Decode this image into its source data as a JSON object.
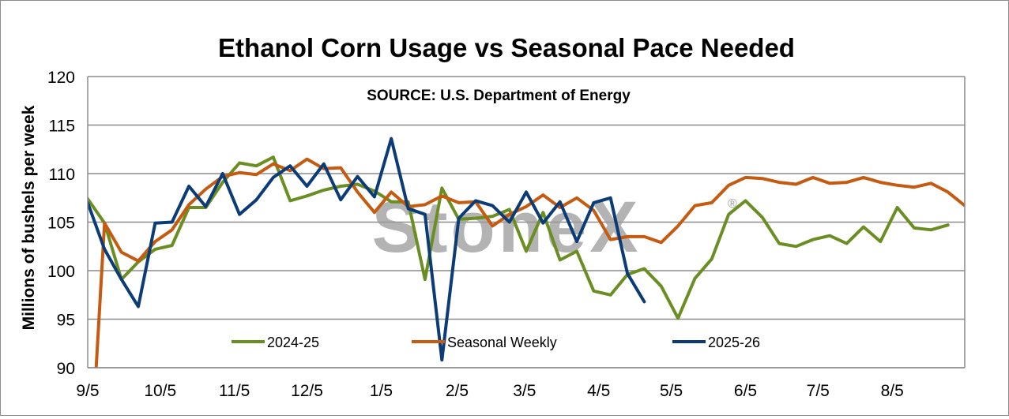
{
  "chart_data": {
    "type": "line",
    "title": "Ethanol Corn Usage vs Seasonal Pace Needed",
    "source_note": "SOURCE: U.S. Department of Energy",
    "watermark": "StoneX",
    "watermark_mark": "®",
    "ylabel": "Millions of bushels per week",
    "xlabel": "",
    "ylim": [
      90,
      120
    ],
    "yticks": [
      "90",
      "95",
      "100",
      "105",
      "110",
      "115",
      "120"
    ],
    "x_domain": [
      0,
      52
    ],
    "x_tick_labels": [
      "9/5",
      "10/5",
      "11/5",
      "12/5",
      "1/5",
      "2/5",
      "3/5",
      "4/5",
      "5/5",
      "6/5",
      "7/5",
      "8/5"
    ],
    "x_tick_positions": [
      0,
      4.3,
      8.7,
      13,
      17.4,
      21.9,
      25.9,
      30.3,
      34.6,
      39,
      43.3,
      47.7
    ],
    "grid": true,
    "legend_position": "bottom",
    "series": [
      {
        "name": "2024-25",
        "color": "#6b8e23",
        "points": [
          [
            0,
            107.4
          ],
          [
            1,
            104.9
          ],
          [
            2,
            99.1
          ],
          [
            3,
            100.9
          ],
          [
            4,
            102.2
          ],
          [
            5,
            102.6
          ],
          [
            6,
            106.5
          ],
          [
            7,
            106.5
          ],
          [
            8,
            109.1
          ],
          [
            9,
            111.1
          ],
          [
            10,
            110.8
          ],
          [
            11,
            111.7
          ],
          [
            12,
            107.2
          ],
          [
            13,
            107.7
          ],
          [
            14,
            108.3
          ],
          [
            15,
            108.7
          ],
          [
            16,
            108.9
          ],
          [
            17,
            108.2
          ],
          [
            18,
            107.1
          ],
          [
            19,
            107.1
          ],
          [
            20,
            99.1
          ],
          [
            21,
            108.5
          ],
          [
            22,
            105.3
          ],
          [
            23,
            105.4
          ],
          [
            24,
            105.6
          ],
          [
            25,
            106.3
          ],
          [
            26,
            102.0
          ],
          [
            27,
            106.0
          ],
          [
            28,
            101.1
          ],
          [
            29,
            102.0
          ],
          [
            30,
            97.9
          ],
          [
            31,
            97.5
          ],
          [
            32,
            99.6
          ],
          [
            33,
            100.2
          ],
          [
            34,
            98.4
          ],
          [
            35,
            95.1
          ],
          [
            36,
            99.2
          ],
          [
            37,
            101.2
          ],
          [
            38,
            105.8
          ],
          [
            39,
            107.2
          ],
          [
            40,
            105.5
          ],
          [
            41,
            102.8
          ],
          [
            42,
            102.5
          ],
          [
            43,
            103.2
          ],
          [
            44,
            103.6
          ],
          [
            45,
            102.8
          ],
          [
            46,
            104.5
          ],
          [
            47,
            103.0
          ],
          [
            48,
            106.5
          ],
          [
            49,
            104.4
          ],
          [
            50,
            104.2
          ],
          [
            51,
            104.7
          ]
        ]
      },
      {
        "name": "Seasonal Weekly",
        "color": "#c55a11",
        "points": [
          [
            0.5,
            90
          ],
          [
            1,
            104.9
          ],
          [
            2,
            101.9
          ],
          [
            3,
            101.0
          ],
          [
            4,
            103.0
          ],
          [
            5,
            104.2
          ],
          [
            6,
            106.8
          ],
          [
            7,
            108.4
          ],
          [
            8,
            109.7
          ],
          [
            9,
            110.1
          ],
          [
            10,
            109.9
          ],
          [
            11,
            111.0
          ],
          [
            12,
            110.3
          ],
          [
            13,
            111.5
          ],
          [
            14,
            110.5
          ],
          [
            15,
            110.6
          ],
          [
            16,
            108.1
          ],
          [
            17,
            106.0
          ],
          [
            18,
            108.1
          ],
          [
            19,
            106.6
          ],
          [
            20,
            106.8
          ],
          [
            21,
            107.7
          ],
          [
            22,
            107.0
          ],
          [
            23,
            107.1
          ],
          [
            24,
            104.6
          ],
          [
            25,
            105.8
          ],
          [
            26,
            106.6
          ],
          [
            27,
            107.8
          ],
          [
            28,
            106.5
          ],
          [
            29,
            107.5
          ],
          [
            30,
            106.2
          ],
          [
            31,
            103.2
          ],
          [
            32,
            103.5
          ],
          [
            33,
            103.5
          ],
          [
            34,
            102.9
          ],
          [
            35,
            104.6
          ],
          [
            36,
            106.7
          ],
          [
            37,
            107.0
          ],
          [
            38,
            108.8
          ],
          [
            39,
            109.6
          ],
          [
            40,
            109.5
          ],
          [
            41,
            109.1
          ],
          [
            42,
            108.9
          ],
          [
            43,
            109.6
          ],
          [
            44,
            109.0
          ],
          [
            45,
            109.1
          ],
          [
            46,
            109.6
          ],
          [
            47,
            109.1
          ],
          [
            48,
            108.8
          ],
          [
            49,
            108.6
          ],
          [
            50,
            109.0
          ],
          [
            51,
            108.1
          ],
          [
            52,
            106.7
          ]
        ]
      },
      {
        "name": "2025-26",
        "color": "#0c3c78",
        "points": [
          [
            0,
            107.0
          ],
          [
            1,
            102.2
          ],
          [
            2,
            99.1
          ],
          [
            3,
            96.3
          ],
          [
            4,
            104.9
          ],
          [
            5,
            105.0
          ],
          [
            6,
            108.7
          ],
          [
            7,
            106.6
          ],
          [
            8,
            110.0
          ],
          [
            9,
            105.8
          ],
          [
            10,
            107.3
          ],
          [
            11,
            109.6
          ],
          [
            12,
            110.8
          ],
          [
            13,
            108.7
          ],
          [
            14,
            111.0
          ],
          [
            15,
            107.3
          ],
          [
            16,
            109.7
          ],
          [
            17,
            107.6
          ],
          [
            18,
            113.6
          ],
          [
            19,
            106.4
          ],
          [
            20,
            105.8
          ],
          [
            21,
            90.8
          ],
          [
            22,
            105.4
          ],
          [
            23,
            107.2
          ],
          [
            24,
            106.7
          ],
          [
            25,
            105.0
          ],
          [
            26,
            108.1
          ],
          [
            27,
            104.9
          ],
          [
            28,
            107.1
          ],
          [
            29,
            103.0
          ],
          [
            30,
            107.0
          ],
          [
            31,
            107.5
          ],
          [
            32,
            99.7
          ],
          [
            33,
            96.8
          ]
        ]
      }
    ]
  }
}
